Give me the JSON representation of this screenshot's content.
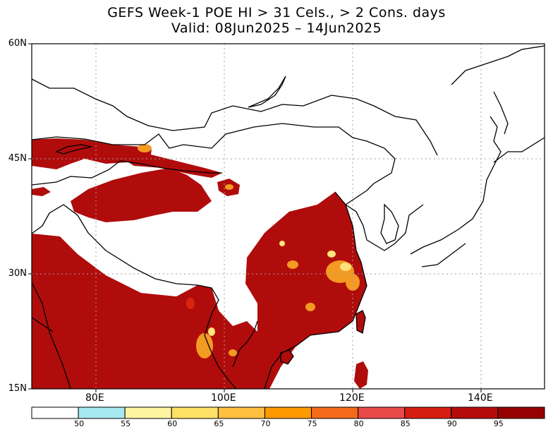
{
  "title": {
    "line1": "GEFS Week-1 POE HI > 31 Cels., > 2 Cons. days",
    "line2": "Valid: 08Jun2025 – 14Jun2025"
  },
  "axes": {
    "lat_labels": [
      "60N",
      "45N",
      "30N",
      "15N"
    ],
    "lon_labels": [
      "80E",
      "100E",
      "120E",
      "140E"
    ]
  },
  "colorbar": {
    "labels": [
      "50",
      "55",
      "60",
      "65",
      "70",
      "75",
      "80",
      "85",
      "90",
      "95"
    ],
    "colors": [
      "#ffffff",
      "#a6e8f0",
      "#fff5a0",
      "#ffe066",
      "#ffbf40",
      "#ff9900",
      "#f56a1a",
      "#e84a4a",
      "#d61e10",
      "#b50c0c",
      "#960000"
    ]
  },
  "fill_colors": {
    "main": "#b00c0c",
    "warm": "#d8230f",
    "orange": "#f39a22",
    "yellow": "#ffe27a",
    "cyan": "#a6e8f0"
  }
}
